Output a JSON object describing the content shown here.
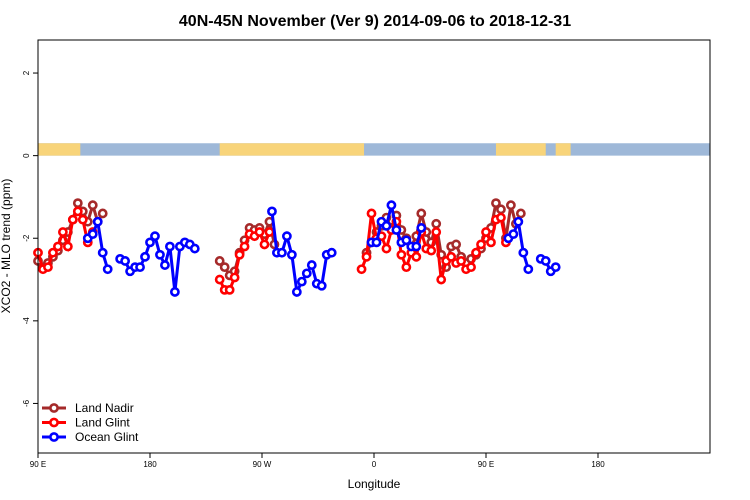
{
  "chart_data": {
    "type": "line",
    "title": "40N-45N November (Ver 9)   2014-09-06 to 2018-12-31",
    "xlabel": "Longitude",
    "ylabel": "XCO2 - MLO trend (ppm)",
    "xlim": [
      -90,
      180
    ],
    "ylim": [
      -7.2,
      2.8
    ],
    "x_ticks": [
      {
        "value": -90,
        "label": "90 E"
      },
      {
        "value": -45,
        "label": "180"
      },
      {
        "value": 0,
        "label": "90 W"
      },
      {
        "value": 45,
        "label": "0"
      },
      {
        "value": 90,
        "label": "90 E"
      },
      {
        "value": 135,
        "label": "180"
      }
    ],
    "y_ticks": [
      {
        "value": 2,
        "label": "2"
      },
      {
        "value": 0,
        "label": "0"
      },
      {
        "value": -2,
        "label": "-2"
      },
      {
        "value": -4,
        "label": "-4"
      },
      {
        "value": -6,
        "label": "-6"
      }
    ],
    "land_ocean_strip": {
      "y_range": [
        0.0,
        0.3
      ],
      "land_color": "#f8d47a",
      "ocean_color": "#9eb8d8",
      "land_intervals": [
        [
          -90,
          -73
        ],
        [
          -17,
          41
        ],
        [
          94,
          114
        ],
        [
          118,
          124
        ]
      ]
    },
    "legend_position": "bottom-left",
    "series": [
      {
        "name": "Land Nadir",
        "color": "#a52a2a",
        "points": [
          [
            -90,
            -2.55
          ],
          [
            -88,
            -2.7
          ],
          [
            -86,
            -2.6
          ],
          [
            -84,
            -2.45
          ],
          [
            -82,
            -2.3
          ],
          [
            -80,
            -2.05
          ],
          [
            -78,
            -1.85
          ],
          [
            -76,
            -1.55
          ],
          [
            -74,
            -1.15
          ],
          [
            -72,
            -1.35
          ],
          [
            -70,
            -1.6
          ],
          [
            -68,
            -1.2
          ],
          [
            -66,
            -1.6
          ],
          [
            -64,
            -1.4
          ],
          [
            -17,
            -2.55
          ],
          [
            -15,
            -2.7
          ],
          [
            -13,
            -2.9
          ],
          [
            -11,
            -2.8
          ],
          [
            -9,
            -2.35
          ],
          [
            -7,
            -2.05
          ],
          [
            -5,
            -1.75
          ],
          [
            -3,
            -1.8
          ],
          [
            -1,
            -1.75
          ],
          [
            1,
            -1.9
          ],
          [
            3,
            -1.6
          ],
          [
            5,
            -2.15
          ],
          [
            42,
            -2.35
          ],
          [
            44,
            -2.1
          ],
          [
            46,
            -1.85
          ],
          [
            48,
            -1.7
          ],
          [
            50,
            -1.5
          ],
          [
            52,
            -1.75
          ],
          [
            54,
            -1.45
          ],
          [
            56,
            -1.8
          ],
          [
            58,
            -2.0
          ],
          [
            60,
            -2.2
          ],
          [
            62,
            -1.95
          ],
          [
            64,
            -1.4
          ],
          [
            66,
            -1.85
          ],
          [
            68,
            -2.1
          ],
          [
            70,
            -1.65
          ],
          [
            72,
            -2.4
          ],
          [
            74,
            -2.7
          ],
          [
            76,
            -2.2
          ],
          [
            78,
            -2.15
          ],
          [
            80,
            -2.45
          ],
          [
            82,
            -2.6
          ],
          [
            84,
            -2.5
          ],
          [
            86,
            -2.4
          ],
          [
            88,
            -2.25
          ],
          [
            90,
            -2.0
          ],
          [
            92,
            -1.75
          ],
          [
            94,
            -1.15
          ],
          [
            96,
            -1.3
          ],
          [
            98,
            -2.0
          ],
          [
            100,
            -1.2
          ],
          [
            102,
            -1.65
          ],
          [
            104,
            -1.4
          ]
        ]
      },
      {
        "name": "Land Glint",
        "color": "#ff0000",
        "points": [
          [
            -90,
            -2.35
          ],
          [
            -88,
            -2.75
          ],
          [
            -86,
            -2.7
          ],
          [
            -84,
            -2.35
          ],
          [
            -82,
            -2.2
          ],
          [
            -80,
            -1.85
          ],
          [
            -78,
            -2.2
          ],
          [
            -76,
            -1.55
          ],
          [
            -74,
            -1.35
          ],
          [
            -72,
            -1.55
          ],
          [
            -70,
            -2.1
          ],
          [
            -68,
            -1.85
          ],
          [
            -17,
            -3.0
          ],
          [
            -15,
            -3.25
          ],
          [
            -13,
            -3.25
          ],
          [
            -11,
            -2.95
          ],
          [
            -9,
            -2.4
          ],
          [
            -7,
            -2.2
          ],
          [
            -5,
            -1.9
          ],
          [
            -3,
            -1.95
          ],
          [
            -1,
            -1.85
          ],
          [
            1,
            -2.15
          ],
          [
            3,
            -1.85
          ],
          [
            40,
            -2.75
          ],
          [
            42,
            -2.45
          ],
          [
            44,
            -1.4
          ],
          [
            46,
            -2.0
          ],
          [
            48,
            -1.95
          ],
          [
            50,
            -2.25
          ],
          [
            52,
            -1.8
          ],
          [
            54,
            -1.6
          ],
          [
            56,
            -2.4
          ],
          [
            58,
            -2.7
          ],
          [
            60,
            -2.35
          ],
          [
            62,
            -2.45
          ],
          [
            64,
            -1.85
          ],
          [
            66,
            -2.25
          ],
          [
            68,
            -2.3
          ],
          [
            70,
            -1.85
          ],
          [
            72,
            -3.0
          ],
          [
            74,
            -2.55
          ],
          [
            76,
            -2.45
          ],
          [
            78,
            -2.6
          ],
          [
            80,
            -2.55
          ],
          [
            82,
            -2.75
          ],
          [
            84,
            -2.7
          ],
          [
            86,
            -2.35
          ],
          [
            88,
            -2.15
          ],
          [
            90,
            -1.85
          ],
          [
            92,
            -2.1
          ],
          [
            94,
            -1.55
          ],
          [
            96,
            -1.5
          ],
          [
            98,
            -2.1
          ]
        ]
      },
      {
        "name": "Ocean Glint",
        "color": "#0000ff",
        "points": [
          [
            -70,
            -2.0
          ],
          [
            -68,
            -1.9
          ],
          [
            -66,
            -1.6
          ],
          [
            -64,
            -2.35
          ],
          [
            -62,
            -2.75
          ],
          [
            -57,
            -2.5
          ],
          [
            -55,
            -2.55
          ],
          [
            -53,
            -2.8
          ],
          [
            -51,
            -2.7
          ],
          [
            -49,
            -2.7
          ],
          [
            -47,
            -2.45
          ],
          [
            -45,
            -2.1
          ],
          [
            -43,
            -1.95
          ],
          [
            -41,
            -2.4
          ],
          [
            -39,
            -2.65
          ],
          [
            -37,
            -2.2
          ],
          [
            -35,
            -3.3
          ],
          [
            -33,
            -2.2
          ],
          [
            -31,
            -2.1
          ],
          [
            -29,
            -2.15
          ],
          [
            -27,
            -2.25
          ],
          [
            4,
            -1.35
          ],
          [
            6,
            -2.35
          ],
          [
            8,
            -2.35
          ],
          [
            10,
            -1.95
          ],
          [
            12,
            -2.4
          ],
          [
            14,
            -3.3
          ],
          [
            16,
            -3.05
          ],
          [
            18,
            -2.85
          ],
          [
            20,
            -2.65
          ],
          [
            22,
            -3.1
          ],
          [
            24,
            -3.15
          ],
          [
            26,
            -2.4
          ],
          [
            28,
            -2.35
          ],
          [
            44,
            -2.1
          ],
          [
            46,
            -2.1
          ],
          [
            48,
            -1.6
          ],
          [
            50,
            -1.7
          ],
          [
            52,
            -1.2
          ],
          [
            54,
            -1.8
          ],
          [
            56,
            -2.1
          ],
          [
            58,
            -2.05
          ],
          [
            60,
            -2.2
          ],
          [
            62,
            -2.2
          ],
          [
            64,
            -1.75
          ],
          [
            99,
            -2.0
          ],
          [
            101,
            -1.9
          ],
          [
            103,
            -1.6
          ],
          [
            105,
            -2.35
          ],
          [
            107,
            -2.75
          ],
          [
            112,
            -2.5
          ],
          [
            114,
            -2.55
          ],
          [
            116,
            -2.8
          ],
          [
            118,
            -2.7
          ]
        ]
      }
    ]
  }
}
